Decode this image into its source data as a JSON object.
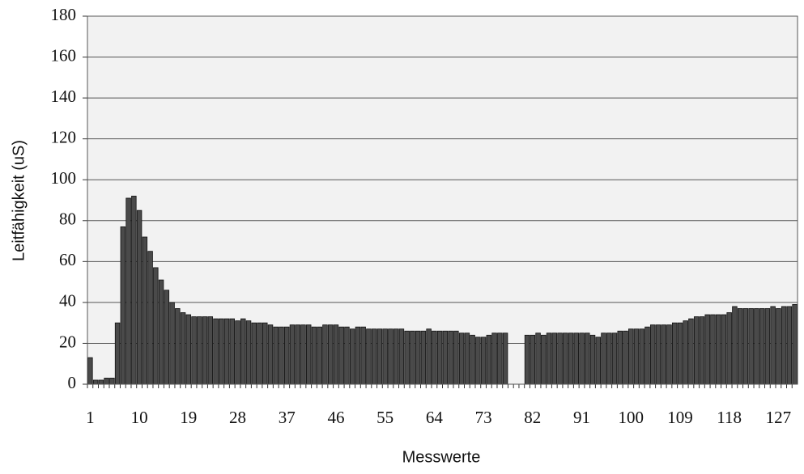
{
  "chart_data": {
    "type": "bar",
    "xlabel": "Messwerte",
    "ylabel": "Leitfähigkeit (uS)",
    "categories": [
      "1",
      null,
      null,
      null,
      null,
      null,
      null,
      null,
      null,
      "10",
      null,
      null,
      null,
      null,
      null,
      null,
      null,
      null,
      "19",
      null,
      null,
      null,
      null,
      null,
      null,
      null,
      null,
      "28",
      null,
      null,
      null,
      null,
      null,
      null,
      null,
      null,
      "37",
      null,
      null,
      null,
      null,
      null,
      null,
      null,
      null,
      "46",
      null,
      null,
      null,
      null,
      null,
      null,
      null,
      null,
      "55",
      null,
      null,
      null,
      null,
      null,
      null,
      null,
      null,
      "64",
      null,
      null,
      null,
      null,
      null,
      null,
      null,
      null,
      "73",
      null,
      null,
      null,
      null,
      null,
      null,
      null,
      null,
      "82",
      null,
      null,
      null,
      null,
      null,
      null,
      null,
      null,
      "91",
      null,
      null,
      null,
      null,
      null,
      null,
      null,
      null,
      "100",
      null,
      null,
      null,
      null,
      null,
      null,
      null,
      null,
      "109",
      null,
      null,
      null,
      null,
      null,
      null,
      null,
      null,
      "118",
      null,
      null,
      null,
      null,
      null,
      null,
      null,
      null,
      "127",
      null,
      null,
      null
    ],
    "values": [
      13,
      2,
      2,
      3,
      3,
      30,
      77,
      91,
      92,
      85,
      72,
      65,
      57,
      51,
      46,
      40,
      37,
      35,
      34,
      33,
      33,
      33,
      33,
      32,
      32,
      32,
      32,
      31,
      32,
      31,
      30,
      30,
      30,
      29,
      28,
      28,
      28,
      29,
      29,
      29,
      29,
      28,
      28,
      29,
      29,
      29,
      28,
      28,
      27,
      28,
      28,
      27,
      27,
      27,
      27,
      27,
      27,
      27,
      26,
      26,
      26,
      26,
      27,
      26,
      26,
      26,
      26,
      26,
      25,
      25,
      24,
      23,
      23,
      24,
      25,
      25,
      25,
      null,
      null,
      null,
      24,
      24,
      25,
      24,
      25,
      25,
      25,
      25,
      25,
      25,
      25,
      25,
      24,
      23,
      25,
      25,
      25,
      26,
      26,
      27,
      27,
      27,
      28,
      29,
      29,
      29,
      29,
      30,
      30,
      31,
      32,
      33,
      33,
      34,
      34,
      34,
      34,
      35,
      38,
      37,
      37,
      37,
      37,
      37,
      37,
      38,
      37,
      38,
      38,
      39
    ],
    "color": "#4a4a4a",
    "ylim": [
      0,
      180
    ],
    "yticks": [
      0,
      20,
      40,
      60,
      80,
      100,
      120,
      140,
      160,
      180
    ],
    "grid": true
  }
}
